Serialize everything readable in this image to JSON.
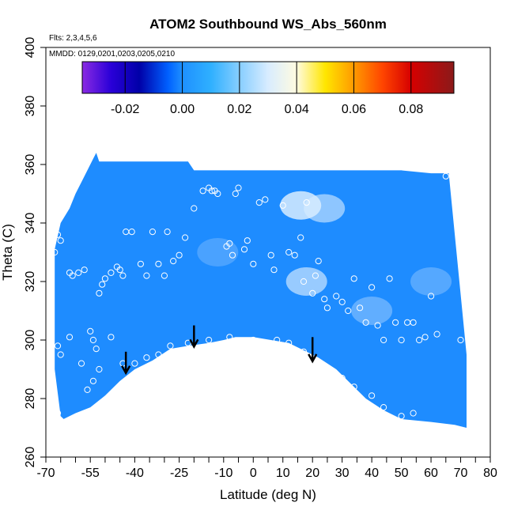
{
  "chart_data": {
    "type": "heatmap",
    "title": "ATOM2 Southbound WS_Abs_560nm",
    "flights_note": "Flts: 2,3,4,5,6",
    "dates_note": "MMDD: 0129,0201,0203,0205,0210",
    "xlabel": "Latitude (deg N)",
    "ylabel": "Theta (C)",
    "xlim": [
      -70,
      80
    ],
    "ylim": [
      260,
      400
    ],
    "x_ticks": [
      -70,
      -55,
      -40,
      -25,
      -10,
      0,
      10,
      20,
      30,
      40,
      50,
      60,
      70,
      80
    ],
    "y_ticks": [
      260,
      280,
      300,
      320,
      340,
      360,
      380,
      400
    ],
    "colorbar": {
      "range": [
        -0.035,
        0.095
      ],
      "ticks": [
        -0.02,
        0.0,
        0.02,
        0.04,
        0.06,
        0.08
      ],
      "tick_labels": [
        "-0.02",
        "0.00",
        "0.02",
        "0.04",
        "0.06",
        "0.08"
      ],
      "stops": [
        {
          "v": -0.035,
          "c": "#8a2be2"
        },
        {
          "v": -0.025,
          "c": "#2a00d8"
        },
        {
          "v": -0.015,
          "c": "#0000a8"
        },
        {
          "v": -0.005,
          "c": "#0060ff"
        },
        {
          "v": 0.0,
          "c": "#1e90ff"
        },
        {
          "v": 0.01,
          "c": "#2fb0ff"
        },
        {
          "v": 0.02,
          "c": "#87ceff"
        },
        {
          "v": 0.03,
          "c": "#d8ecff"
        },
        {
          "v": 0.04,
          "c": "#fffbe0"
        },
        {
          "v": 0.05,
          "c": "#ffe600"
        },
        {
          "v": 0.06,
          "c": "#ff9a00"
        },
        {
          "v": 0.07,
          "c": "#ff4500"
        },
        {
          "v": 0.08,
          "c": "#d60000"
        },
        {
          "v": 0.095,
          "c": "#8b1a1a"
        }
      ]
    },
    "field": {
      "base_color": "#1e8cff",
      "upper_boundary": [
        [
          -67,
          331
        ],
        [
          -65,
          340
        ],
        [
          -62,
          345
        ],
        [
          -60,
          350
        ],
        [
          -58,
          354
        ],
        [
          -56,
          358
        ],
        [
          -54,
          362
        ],
        [
          -53,
          364
        ],
        [
          -52,
          361
        ],
        [
          -46,
          361
        ],
        [
          -36,
          361
        ],
        [
          -26,
          361
        ],
        [
          -22,
          361
        ],
        [
          -20,
          358
        ],
        [
          -10,
          358
        ],
        [
          0,
          358
        ],
        [
          10,
          358
        ],
        [
          20,
          358
        ],
        [
          30,
          358
        ],
        [
          40,
          358
        ],
        [
          50,
          358
        ],
        [
          60,
          357
        ],
        [
          66,
          357
        ]
      ],
      "lower_boundary": [
        [
          72,
          295
        ],
        [
          72,
          270
        ],
        [
          68,
          271
        ],
        [
          60,
          272
        ],
        [
          50,
          273
        ],
        [
          44,
          276
        ],
        [
          38,
          280
        ],
        [
          34,
          284
        ],
        [
          28,
          290
        ],
        [
          22,
          294
        ],
        [
          18,
          296
        ],
        [
          12,
          299
        ],
        [
          6,
          300
        ],
        [
          0,
          301
        ],
        [
          -6,
          301
        ],
        [
          -10,
          300
        ],
        [
          -15,
          299
        ],
        [
          -22,
          298
        ],
        [
          -28,
          297
        ],
        [
          -34,
          293
        ],
        [
          -40,
          290
        ],
        [
          -45,
          286
        ],
        [
          -50,
          281
        ],
        [
          -55,
          277
        ],
        [
          -60,
          275
        ],
        [
          -64,
          273
        ],
        [
          -65,
          274
        ],
        [
          -67,
          290
        ]
      ],
      "highlights": [
        {
          "lat": 18,
          "theta": 320,
          "strength": 0.022
        },
        {
          "lat": 16,
          "theta": 346,
          "strength": 0.03
        },
        {
          "lat": 24,
          "theta": 345,
          "strength": 0.02
        },
        {
          "lat": 40,
          "theta": 310,
          "strength": 0.012
        },
        {
          "lat": -12,
          "theta": 330,
          "strength": 0.008
        },
        {
          "lat": 60,
          "theta": 320,
          "strength": 0.01
        }
      ]
    },
    "samples": [
      [
        -67,
        330
      ],
      [
        -66,
        336
      ],
      [
        -65,
        334
      ],
      [
        -62,
        323
      ],
      [
        -61,
        322
      ],
      [
        -59,
        323
      ],
      [
        -57,
        324
      ],
      [
        -55,
        303
      ],
      [
        -54,
        300
      ],
      [
        -53,
        297
      ],
      [
        -52,
        316
      ],
      [
        -51,
        319
      ],
      [
        -50,
        321
      ],
      [
        -48,
        323
      ],
      [
        -46,
        325
      ],
      [
        -45,
        324
      ],
      [
        -44,
        322
      ],
      [
        -43,
        337
      ],
      [
        -41,
        337
      ],
      [
        -38,
        326
      ],
      [
        -36,
        322
      ],
      [
        -34,
        337
      ],
      [
        -32,
        326
      ],
      [
        -30,
        322
      ],
      [
        -29,
        337
      ],
      [
        -27,
        327
      ],
      [
        -25,
        329
      ],
      [
        -23,
        335
      ],
      [
        -20,
        345
      ],
      [
        -17,
        351
      ],
      [
        -15,
        352
      ],
      [
        -14,
        351
      ],
      [
        -13,
        351
      ],
      [
        -12,
        350
      ],
      [
        -9,
        332
      ],
      [
        -8,
        333
      ],
      [
        -7,
        329
      ],
      [
        -6,
        350
      ],
      [
        -5,
        352
      ],
      [
        -3,
        331
      ],
      [
        -2,
        334
      ],
      [
        0,
        326
      ],
      [
        2,
        347
      ],
      [
        4,
        348
      ],
      [
        6,
        329
      ],
      [
        7,
        324
      ],
      [
        10,
        346
      ],
      [
        12,
        330
      ],
      [
        14,
        329
      ],
      [
        16,
        335
      ],
      [
        17,
        320
      ],
      [
        18,
        347
      ],
      [
        20,
        316
      ],
      [
        21,
        322
      ],
      [
        22,
        327
      ],
      [
        24,
        314
      ],
      [
        25,
        311
      ],
      [
        28,
        315
      ],
      [
        30,
        313
      ],
      [
        32,
        310
      ],
      [
        34,
        321
      ],
      [
        36,
        311
      ],
      [
        38,
        306
      ],
      [
        40,
        318
      ],
      [
        42,
        305
      ],
      [
        44,
        300
      ],
      [
        46,
        321
      ],
      [
        48,
        306
      ],
      [
        50,
        300
      ],
      [
        52,
        306
      ],
      [
        54,
        306
      ],
      [
        56,
        300
      ],
      [
        58,
        301
      ],
      [
        60,
        315
      ],
      [
        62,
        302
      ],
      [
        65,
        356
      ],
      [
        70,
        300
      ],
      [
        -66,
        298
      ],
      [
        -65,
        295
      ],
      [
        -62,
        301
      ],
      [
        -58,
        292
      ],
      [
        -56,
        283
      ],
      [
        -54,
        286
      ],
      [
        -52,
        290
      ],
      [
        -48,
        301
      ],
      [
        -44,
        292
      ],
      [
        -40,
        292
      ],
      [
        -36,
        294
      ],
      [
        -32,
        295
      ],
      [
        -28,
        298
      ],
      [
        -22,
        299
      ],
      [
        -15,
        300
      ],
      [
        -8,
        301
      ],
      [
        0,
        300
      ],
      [
        8,
        300
      ],
      [
        12,
        299
      ],
      [
        17,
        296
      ],
      [
        20,
        293
      ],
      [
        22,
        292
      ],
      [
        26,
        289
      ],
      [
        30,
        287
      ],
      [
        34,
        284
      ],
      [
        40,
        281
      ],
      [
        44,
        277
      ],
      [
        50,
        274
      ],
      [
        54,
        275
      ],
      [
        -66,
        275
      ],
      [
        -68,
        262
      ]
    ],
    "arrows": [
      {
        "lat": -43,
        "theta_top": 296,
        "theta_bottom": 289
      },
      {
        "lat": -20,
        "theta_top": 305,
        "theta_bottom": 298
      },
      {
        "lat": 20,
        "theta_top": 301,
        "theta_bottom": 293
      }
    ]
  }
}
